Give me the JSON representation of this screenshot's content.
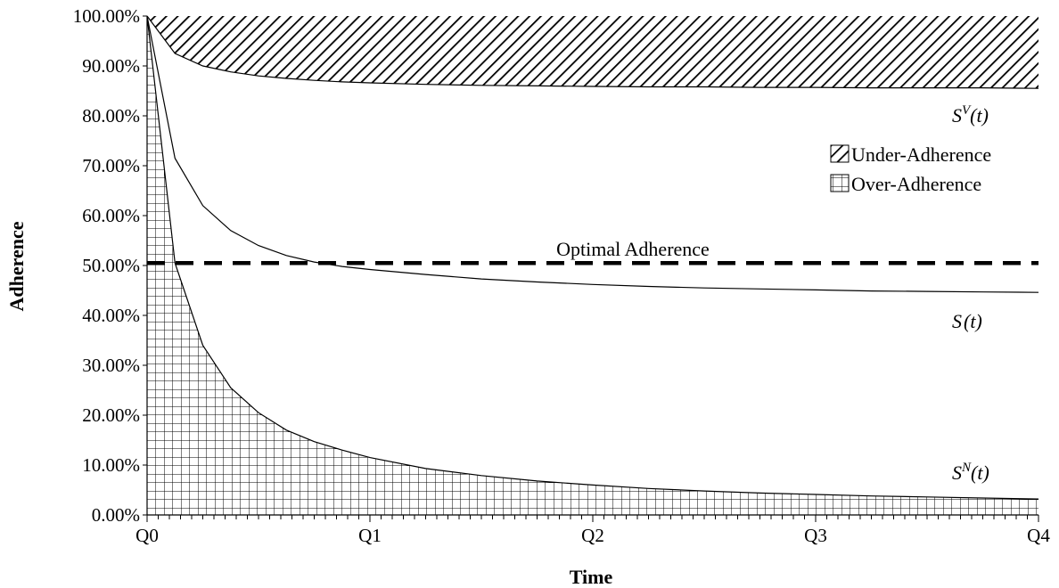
{
  "chart_data": {
    "type": "area",
    "xlabel": "Time",
    "ylabel": "Adherence",
    "x_categories": [
      "Q0",
      "Q1",
      "Q2",
      "Q3",
      "Q4"
    ],
    "x_range": [
      0,
      4
    ],
    "y_ticks": [
      "0.00%",
      "10.00%",
      "20.00%",
      "30.00%",
      "40.00%",
      "50.00%",
      "60.00%",
      "70.00%",
      "80.00%",
      "90.00%",
      "100.00%"
    ],
    "ylim": [
      0,
      100
    ],
    "grid": false,
    "legend_position": "right",
    "x": [
      0,
      0.125,
      0.25,
      0.375,
      0.5,
      0.625,
      0.75,
      0.875,
      1.0,
      1.25,
      1.5,
      1.75,
      2.0,
      2.25,
      2.5,
      2.75,
      3.0,
      3.25,
      3.5,
      3.75,
      4.0
    ],
    "series": [
      {
        "curve_label_main": "S",
        "curve_label_sup": "V",
        "curve_label_tail": "(t)",
        "values": [
          100,
          92.5,
          90,
          88.8,
          88,
          87.5,
          87.1,
          86.8,
          86.6,
          86.3,
          86.1,
          86,
          85.9,
          85.8,
          85.8,
          85.7,
          85.7,
          85.6,
          85.6,
          85.6,
          85.5
        ]
      },
      {
        "curve_label_main": "S",
        "curve_label_sup": "",
        "curve_label_tail": "(t)",
        "values": [
          100,
          71.5,
          62,
          57,
          54,
          52,
          50.7,
          49.8,
          49.2,
          48.2,
          47.3,
          46.7,
          46.2,
          45.8,
          45.5,
          45.3,
          45.1,
          44.9,
          44.8,
          44.7,
          44.6
        ]
      },
      {
        "curve_label_main": "S",
        "curve_label_sup": "N",
        "curve_label_tail": "(t)",
        "values": [
          100,
          50.5,
          34,
          25.5,
          20.5,
          17,
          14.7,
          13,
          11.5,
          9.3,
          7.9,
          6.8,
          6.0,
          5.3,
          4.8,
          4.4,
          4.1,
          3.8,
          3.6,
          3.4,
          3.2
        ]
      }
    ],
    "reference_line": {
      "label": "Optimal Adherence",
      "y": 50.5,
      "style": "dashed"
    },
    "legend": [
      {
        "label": "Under-Adherence",
        "pattern": "diagonal-hatch"
      },
      {
        "label": "Over-Adherence",
        "pattern": "grid-hatch"
      }
    ],
    "colors": {
      "line": "#000000",
      "background": "#ffffff"
    }
  }
}
